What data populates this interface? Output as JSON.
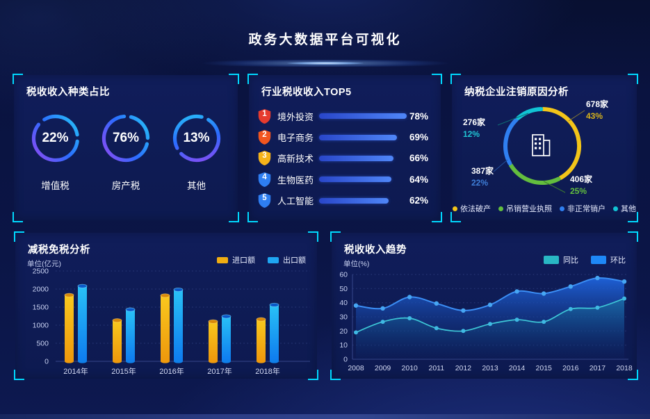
{
  "page": {
    "title": "政务大数据平台可视化"
  },
  "panels": {
    "taxTypes": {
      "title": "税收收入种类占比",
      "items": [
        {
          "percent": "22%",
          "label": "增值税",
          "value": 22
        },
        {
          "percent": "76%",
          "label": "房产税",
          "value": 76
        },
        {
          "percent": "13%",
          "label": "其他",
          "value": 13
        }
      ]
    },
    "industryTop5": {
      "title": "行业税收收入TOP5",
      "rows": [
        {
          "rank": "1",
          "label": "境外投资",
          "percent": "78%",
          "value": 78,
          "badge_color": "#e63b2e"
        },
        {
          "rank": "2",
          "label": "电子商务",
          "percent": "69%",
          "value": 69,
          "badge_color": "#f2561f"
        },
        {
          "rank": "3",
          "label": "高新技术",
          "percent": "66%",
          "value": 66,
          "badge_color": "#f5b31a"
        },
        {
          "rank": "4",
          "label": "生物医药",
          "percent": "64%",
          "value": 64,
          "badge_color": "#2e7ef2"
        },
        {
          "rank": "5",
          "label": "人工智能",
          "percent": "62%",
          "value": 62,
          "badge_color": "#2e7ef2"
        }
      ]
    },
    "cancellation": {
      "title": "纳税企业注销原因分析",
      "callouts": [
        {
          "count": "678家",
          "percent": "43%",
          "color": "#d9b31a"
        },
        {
          "count": "276家",
          "percent": "12%",
          "color": "#21c5d4"
        },
        {
          "count": "387家",
          "percent": "22%",
          "color": "#3f7fd9"
        },
        {
          "count": "406家",
          "percent": "25%",
          "color": "#63be3e"
        }
      ],
      "legend": [
        {
          "label": "依法破产",
          "color": "#f3c519"
        },
        {
          "label": "吊销营业执照",
          "color": "#63be3e"
        },
        {
          "label": "非正常销户",
          "color": "#2f7ff0"
        },
        {
          "label": "其他",
          "color": "#11c3d4"
        }
      ]
    },
    "reduction": {
      "title": "减税免税分析",
      "unit_label": "单位(亿元)",
      "legend": [
        {
          "label": "进口额",
          "color": "#f0ad12"
        },
        {
          "label": "出口额",
          "color": "#1fa6f2"
        }
      ]
    },
    "trend": {
      "title": "税收收入趋势",
      "unit_label": "单位(%)",
      "legend": [
        {
          "label": "同比",
          "color": "#29b7c4"
        },
        {
          "label": "环比",
          "color": "#1e88f7"
        }
      ]
    }
  },
  "chart_data": [
    {
      "type": "pie",
      "variant": "progress-rings",
      "title": "税收收入种类占比",
      "unit": "%",
      "items": [
        {
          "label": "增值税",
          "value": 22
        },
        {
          "label": "房产税",
          "value": 76
        },
        {
          "label": "其他",
          "value": 13
        }
      ]
    },
    {
      "type": "bar",
      "variant": "horizontal-rank",
      "title": "行业税收收入TOP5",
      "unit": "%",
      "categories": [
        "境外投资",
        "电子商务",
        "高新技术",
        "生物医药",
        "人工智能"
      ],
      "values": [
        78,
        69,
        66,
        64,
        62
      ]
    },
    {
      "type": "pie",
      "variant": "donut",
      "title": "纳税企业注销原因分析",
      "slices": [
        {
          "label": "依法破产",
          "count": 678,
          "percent": 43,
          "color": "#f3c519"
        },
        {
          "label": "吊销营业执照",
          "count": 406,
          "percent": 25,
          "color": "#63be3e"
        },
        {
          "label": "非正常销户",
          "count": 387,
          "percent": 22,
          "color": "#2f7ff0"
        },
        {
          "label": "其他",
          "count": 276,
          "percent": 12,
          "color": "#11c3d4"
        }
      ],
      "legend_position": "bottom"
    },
    {
      "type": "bar",
      "title": "减税免税分析",
      "ylabel": "单位(亿元)",
      "categories": [
        "2014年",
        "2015年",
        "2016年",
        "2017年",
        "2018年"
      ],
      "series": [
        {
          "name": "进口额",
          "color": "#f0ad12",
          "values": [
            1830,
            1130,
            1820,
            1100,
            1160
          ]
        },
        {
          "name": "出口额",
          "color": "#1fa6f2",
          "values": [
            2080,
            1430,
            1980,
            1240,
            1560
          ]
        }
      ],
      "ylim": [
        0,
        2500
      ],
      "yticks": [
        0,
        500,
        1000,
        1500,
        2000,
        2500
      ],
      "grid": "dotted",
      "legend_position": "top-right"
    },
    {
      "type": "area",
      "title": "税收收入趋势",
      "ylabel": "单位(%)",
      "x": [
        "2008",
        "2009",
        "2010",
        "2011",
        "2012",
        "2013",
        "2014",
        "2015",
        "2016",
        "2017",
        "2018"
      ],
      "series": [
        {
          "name": "同比",
          "color": "#2fc1cf",
          "values": [
            19,
            26.5,
            29,
            22,
            20,
            25,
            28,
            26.5,
            35.5,
            36.5,
            43
          ]
        },
        {
          "name": "环比",
          "color": "#2a8cf4",
          "values": [
            38,
            36,
            44,
            39.5,
            34.5,
            38.5,
            48,
            46.5,
            51.5,
            57.5,
            55
          ]
        }
      ],
      "ylim": [
        0,
        60
      ],
      "yticks": [
        0,
        10,
        20,
        30,
        40,
        50,
        60
      ],
      "grid": "dotted",
      "legend_position": "top-right"
    }
  ]
}
